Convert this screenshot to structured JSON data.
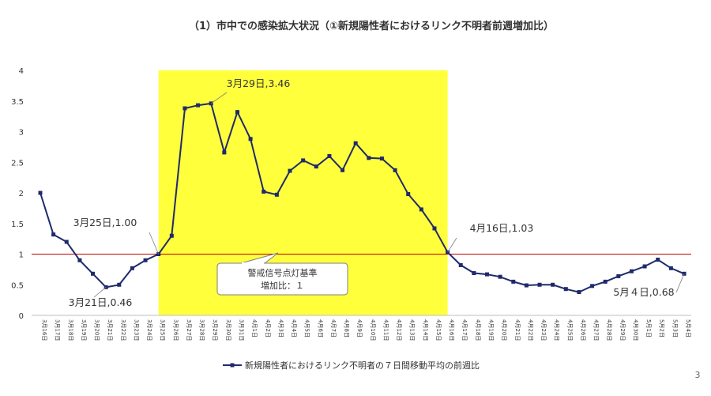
{
  "page_number": "3",
  "colors": {
    "series": "#1f2a6b",
    "threshold": "#c00000",
    "highlight": "#ffff3c"
  },
  "chart_data": {
    "type": "line",
    "title": "（1）市中での感染拡大状況（①新規陽性者におけるリンク不明者前週増加比）",
    "categories": [
      "3月16日",
      "3月17日",
      "3月18日",
      "3月19日",
      "3月20日",
      "3月21日",
      "3月22日",
      "3月23日",
      "3月24日",
      "3月25日",
      "3月26日",
      "3月27日",
      "3月28日",
      "3月29日",
      "3月30日",
      "3月31日",
      "4月1日",
      "4月2日",
      "4月3日",
      "4月4日",
      "4月5日",
      "4月6日",
      "4月7日",
      "4月8日",
      "4月9日",
      "4月10日",
      "4月11日",
      "4月12日",
      "4月13日",
      "4月14日",
      "4月15日",
      "4月16日",
      "4月17日",
      "4月18日",
      "4月19日",
      "4月20日",
      "4月21日",
      "4月22日",
      "4月23日",
      "4月24日",
      "4月25日",
      "4月26日",
      "4月27日",
      "4月28日",
      "4月29日",
      "4月30日",
      "5月1日",
      "5月2日",
      "5月3日",
      "5月4日"
    ],
    "series": [
      {
        "name": "新規陽性者におけるリンク不明者の７日間移動平均の前週比",
        "values": [
          2.0,
          1.32,
          1.2,
          0.9,
          0.68,
          0.46,
          0.5,
          0.77,
          0.9,
          1.0,
          1.3,
          3.38,
          3.43,
          3.46,
          2.66,
          3.32,
          2.88,
          2.02,
          1.97,
          2.36,
          2.53,
          2.43,
          2.6,
          2.37,
          2.81,
          2.57,
          2.56,
          2.37,
          1.98,
          1.73,
          1.42,
          1.03,
          0.82,
          0.69,
          0.67,
          0.63,
          0.55,
          0.49,
          0.5,
          0.5,
          0.43,
          0.38,
          0.48,
          0.55,
          0.64,
          0.72,
          0.8,
          0.91,
          0.77,
          0.68
        ]
      }
    ],
    "ylim": [
      0,
      4
    ],
    "yticks": [
      "0",
      "0.5",
      "1",
      "1.5",
      "2",
      "2.5",
      "3",
      "3.5",
      "4"
    ],
    "threshold": 1,
    "highlight_range": [
      "3月25日",
      "4月16日"
    ],
    "annotations": [
      {
        "index": 13,
        "label": "3月29日,3.46"
      },
      {
        "index": 9,
        "label": "3月25日,1.00"
      },
      {
        "index": 5,
        "label": "3月21日,0.46"
      },
      {
        "index": 31,
        "label": "4月16日,1.03"
      },
      {
        "index": 49,
        "label": "5月４日,0.68"
      }
    ],
    "callout": [
      "警戒信号点灯基準",
      "増加比：１"
    ],
    "legend_position": "bottom",
    "grid": false
  }
}
